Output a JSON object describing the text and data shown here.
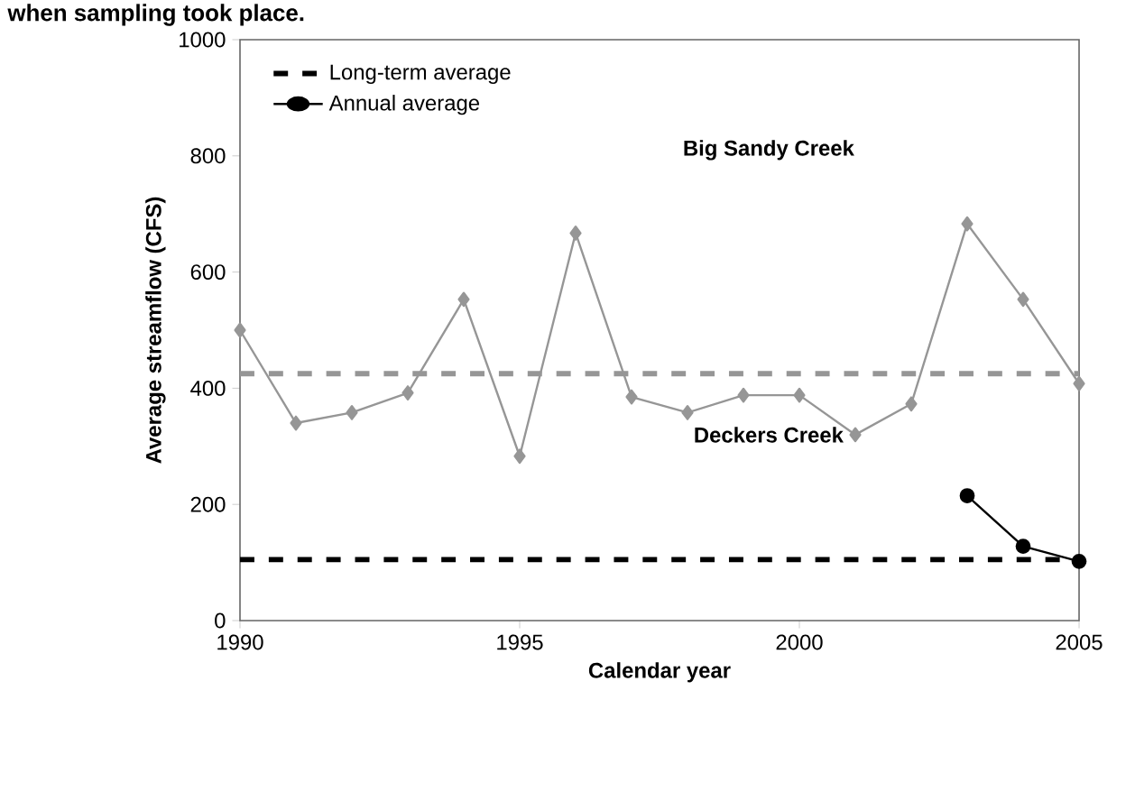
{
  "chart_data": {
    "type": "line",
    "title": "when sampling took place.",
    "xlabel": "Calendar year",
    "ylabel": "Average streamflow (CFS)",
    "xlim": [
      1990,
      2005
    ],
    "xticks": [
      1990,
      1995,
      2000,
      2005
    ],
    "ylim": [
      0,
      1000
    ],
    "yticks": [
      0,
      200,
      400,
      600,
      800,
      1000
    ],
    "grid": false,
    "legend": "top left",
    "series": [
      {
        "name": "Long-term average",
        "color": "#000000",
        "line_style": "dashed",
        "marker": "none",
        "x": [
          1990,
          2005
        ],
        "values": [
          105,
          105
        ]
      },
      {
        "name": "Annual average",
        "color": "#000000",
        "line_style": "solid",
        "marker": "circle",
        "x": [
          2003,
          2004,
          2005
        ],
        "values": [
          215,
          128,
          102
        ]
      },
      {
        "color": "#969696",
        "line_style": "dashed",
        "marker": "none",
        "x": [
          1990,
          2005
        ],
        "values": [
          425,
          425
        ]
      },
      {
        "color": "#969696",
        "line_style": "solid",
        "marker": "diamond",
        "x": [
          1990,
          1991,
          1992,
          1993,
          1994,
          1995,
          1996,
          1997,
          1998,
          1999,
          2000,
          2001,
          2002,
          2003,
          2004,
          2005
        ],
        "values": [
          500,
          340,
          358,
          392,
          553,
          283,
          667,
          385,
          358,
          388,
          388,
          320,
          373,
          683,
          553,
          408
        ]
      }
    ],
    "annotations": [
      "Big Sandy Creek",
      "Deckers Creek"
    ]
  }
}
